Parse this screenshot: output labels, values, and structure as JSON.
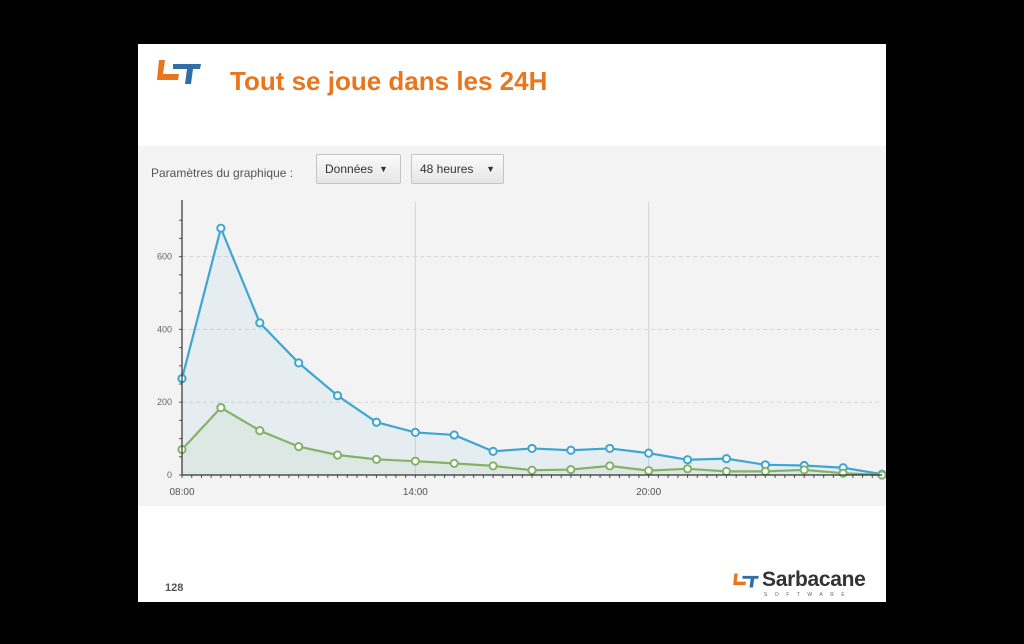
{
  "slide": {
    "title": "Tout se joue dans les 24H",
    "page_number": "128"
  },
  "controls": {
    "params_label": "Paramètres du graphique :",
    "dropdown_data": "Données",
    "dropdown_period": "48 heures"
  },
  "brand": {
    "name": "Sarbacane",
    "subtitle": "SOFTWARE",
    "colors": {
      "orange": "#e8761e",
      "blue": "#2f6fa5"
    }
  },
  "chart_data": {
    "type": "area",
    "x": [
      "08:00",
      "09:00",
      "10:00",
      "11:00",
      "12:00",
      "13:00",
      "14:00",
      "15:00",
      "16:00",
      "17:00",
      "18:00",
      "19:00",
      "20:00",
      "21:00",
      "22:00",
      "23:00",
      "00:00",
      "01:00",
      "02:00"
    ],
    "x_tick_labels": [
      "08:00",
      "14:00",
      "20:00"
    ],
    "y_ticks": [
      0,
      200,
      400,
      600
    ],
    "ylim": [
      0,
      750
    ],
    "grid": true,
    "series": [
      {
        "color": "#3ea6cf",
        "values": [
          265,
          678,
          418,
          308,
          218,
          145,
          117,
          110,
          65,
          73,
          68,
          73,
          60,
          42,
          45,
          28,
          26,
          20,
          2
        ]
      },
      {
        "color": "#82b366",
        "values": [
          70,
          185,
          122,
          78,
          55,
          43,
          38,
          32,
          25,
          13,
          15,
          25,
          12,
          17,
          10,
          10,
          14,
          5,
          0
        ]
      }
    ]
  }
}
